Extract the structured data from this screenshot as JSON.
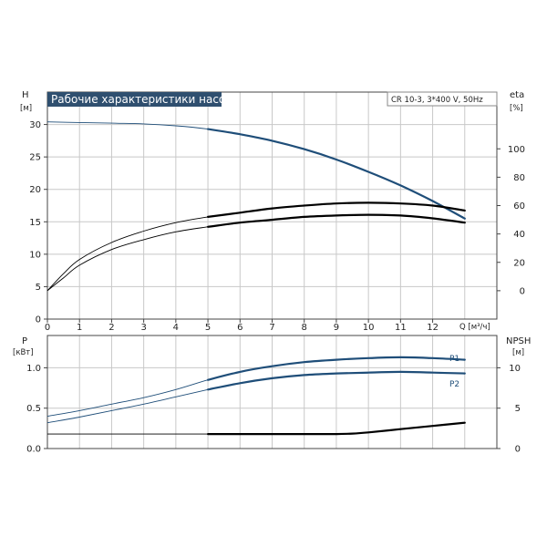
{
  "chart_data": [
    {
      "type": "line",
      "title": "Рабочие характеристики насоса",
      "annotation": "CR 10-3, 3*400 V, 50Hz",
      "left_axis": {
        "name": "H",
        "unit": "[м]",
        "range": [
          0,
          35
        ],
        "ticks": [
          "0",
          "5",
          "10",
          "15",
          "20",
          "25",
          "30"
        ]
      },
      "right_axis": {
        "name": "eta",
        "unit": "[%]",
        "range": [
          -20,
          140
        ],
        "ticks": [
          "0",
          "20",
          "40",
          "60",
          "80",
          "100"
        ]
      },
      "x_axis": {
        "label": "Q [м³/ч]",
        "range": [
          0,
          14
        ],
        "ticks": [
          "0",
          "1",
          "2",
          "3",
          "4",
          "5",
          "6",
          "7",
          "8",
          "9",
          "10",
          "11",
          "12"
        ]
      },
      "grid": true,
      "series": [
        {
          "axis": "left",
          "color": "#1f4e79",
          "x": [
            0,
            1,
            2,
            3,
            4,
            5,
            6,
            7,
            8,
            9,
            10,
            11,
            12,
            13
          ],
          "y": [
            30.4,
            30.3,
            30.2,
            30.1,
            29.8,
            29.3,
            28.5,
            27.5,
            26.2,
            24.6,
            22.7,
            20.6,
            18.2,
            15.5
          ]
        },
        {
          "axis": "right",
          "color": "#000000",
          "x": [
            0,
            0.5,
            1,
            2,
            3,
            4,
            5,
            6,
            7,
            8,
            9,
            10,
            11,
            12,
            13
          ],
          "y": [
            0,
            12,
            22,
            34,
            42,
            48,
            52,
            55,
            58,
            60,
            61.5,
            62,
            61.5,
            60,
            56.5
          ]
        },
        {
          "axis": "right",
          "color": "#000000",
          "x": [
            0,
            0.5,
            1,
            2,
            3,
            4,
            5,
            6,
            7,
            8,
            9,
            10,
            11,
            12,
            13
          ],
          "y": [
            0,
            9,
            18,
            29,
            36,
            41.5,
            45,
            48,
            50,
            52,
            53,
            53.5,
            53,
            51,
            48
          ]
        }
      ]
    },
    {
      "type": "line",
      "left_axis": {
        "name": "P",
        "unit": "[кВт]",
        "range": [
          0,
          1.4
        ],
        "ticks": [
          "0.0",
          "0.5",
          "1.0"
        ]
      },
      "right_axis": {
        "name": "NPSH",
        "unit": "[м]",
        "range": [
          0,
          14
        ],
        "ticks": [
          "0",
          "5",
          "10"
        ]
      },
      "x_axis": {
        "range": [
          0,
          14
        ]
      },
      "grid": true,
      "series": [
        {
          "name": "P1",
          "axis": "left",
          "color": "#1f4e79",
          "x": [
            0,
            1,
            2,
            3,
            4,
            5,
            6,
            7,
            8,
            9,
            10,
            11,
            12,
            13
          ],
          "y": [
            0.4,
            0.47,
            0.55,
            0.63,
            0.73,
            0.85,
            0.95,
            1.02,
            1.07,
            1.1,
            1.12,
            1.13,
            1.12,
            1.1
          ]
        },
        {
          "name": "P2",
          "axis": "left",
          "color": "#1f4e79",
          "x": [
            0,
            1,
            2,
            3,
            4,
            5,
            6,
            7,
            8,
            9,
            10,
            11,
            12,
            13
          ],
          "y": [
            0.32,
            0.39,
            0.47,
            0.55,
            0.64,
            0.73,
            0.81,
            0.87,
            0.91,
            0.93,
            0.94,
            0.95,
            0.94,
            0.93
          ]
        },
        {
          "axis": "right",
          "color": "#000000",
          "x": [
            0,
            1,
            2,
            3,
            4,
            5,
            6,
            7,
            8,
            9,
            9.5,
            10,
            11,
            12,
            13
          ],
          "y": [
            1.8,
            1.8,
            1.8,
            1.8,
            1.8,
            1.8,
            1.8,
            1.8,
            1.8,
            1.8,
            1.85,
            2.0,
            2.4,
            2.8,
            3.2
          ]
        }
      ]
    }
  ]
}
